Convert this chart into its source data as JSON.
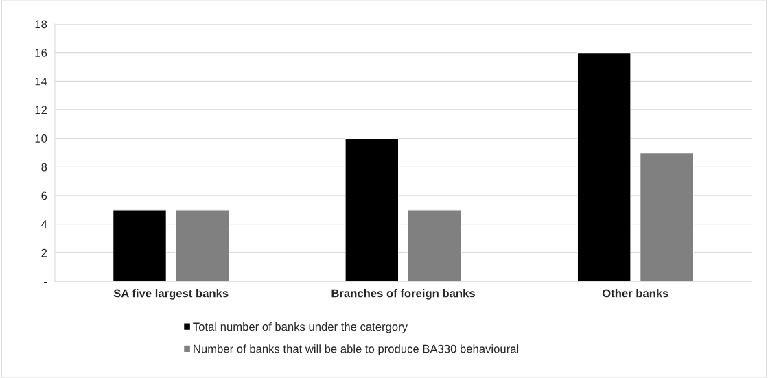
{
  "chart_data": {
    "type": "bar",
    "categories": [
      "SA five largest banks",
      "Branches of foreign banks",
      "Other banks"
    ],
    "series": [
      {
        "name": "Total number of banks under the catergory",
        "color": "#000000",
        "values": [
          5,
          10,
          16
        ]
      },
      {
        "name": "Number of banks that will be able to produce BA330 behavioural",
        "color": "#808080",
        "values": [
          5,
          5,
          9
        ]
      }
    ],
    "ylim": [
      0,
      18
    ],
    "yticks": [
      {
        "value": 0,
        "label": "-"
      },
      2,
      4,
      6,
      8,
      10,
      12,
      14,
      16,
      18
    ],
    "grid": "y",
    "legend": "bottom"
  }
}
